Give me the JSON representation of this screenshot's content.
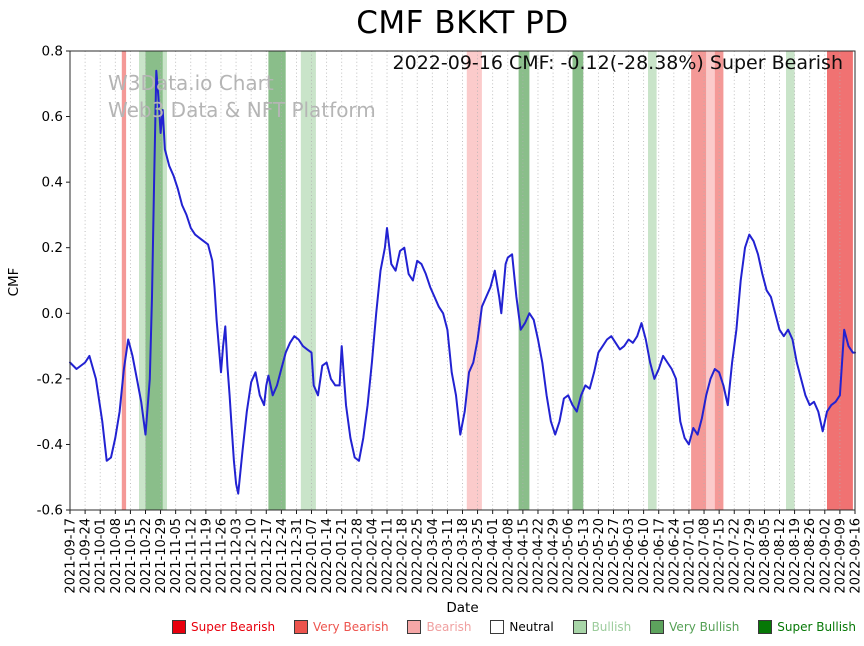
{
  "title": "CMF BKKT PD",
  "annotation": "2022-09-16 CMF: -0.12(-28.38%) Super Bearish",
  "watermark": {
    "line1": "W3Data.io Chart",
    "line2": "Web3 Data & NFT Platform"
  },
  "chart_data": {
    "type": "line",
    "title": "CMF BKKT PD",
    "xlabel": "Date",
    "ylabel": "CMF",
    "ylim": [
      -0.6,
      0.8
    ],
    "yticks": [
      0.8,
      0.6,
      0.4,
      0.2,
      0,
      -0.2,
      -0.4,
      -0.6
    ],
    "grid": "vertical-dotted",
    "days_total": 364,
    "x_tick_interval_days": 7,
    "x_tick_labels": [
      "2021-09-17",
      "2021-09-24",
      "2021-10-01",
      "2021-10-08",
      "2021-10-15",
      "2021-10-22",
      "2021-10-29",
      "2021-11-05",
      "2021-11-12",
      "2021-11-19",
      "2021-11-26",
      "2021-12-03",
      "2021-12-10",
      "2021-12-17",
      "2021-12-24",
      "2021-12-31",
      "2022-01-07",
      "2022-01-14",
      "2022-01-21",
      "2022-01-28",
      "2022-02-04",
      "2022-02-11",
      "2022-02-18",
      "2022-02-25",
      "2022-03-04",
      "2022-03-11",
      "2022-03-18",
      "2022-03-25",
      "2022-04-01",
      "2022-04-08",
      "2022-04-15",
      "2022-04-22",
      "2022-04-29",
      "2022-05-06",
      "2022-05-13",
      "2022-05-20",
      "2022-05-27",
      "2022-06-03",
      "2022-06-10",
      "2022-06-17",
      "2022-06-24",
      "2022-07-01",
      "2022-07-08",
      "2022-07-15",
      "2022-07-22",
      "2022-07-29",
      "2022-08-05",
      "2022-08-12",
      "2022-08-19",
      "2022-08-26",
      "2022-09-02",
      "2022-09-09",
      "2022-09-16"
    ],
    "current": {
      "date": "2022-09-16",
      "cmf": -0.12,
      "change_pct": -28.38,
      "signal": "Super Bearish"
    },
    "line_color": "#2222d2",
    "series": [
      {
        "name": "CMF",
        "points": [
          [
            0,
            -0.15
          ],
          [
            3,
            -0.17
          ],
          [
            7,
            -0.15
          ],
          [
            9,
            -0.13
          ],
          [
            12,
            -0.2
          ],
          [
            15,
            -0.33
          ],
          [
            17,
            -0.45
          ],
          [
            19,
            -0.44
          ],
          [
            21,
            -0.38
          ],
          [
            23,
            -0.3
          ],
          [
            25,
            -0.17
          ],
          [
            27,
            -0.08
          ],
          [
            29,
            -0.13
          ],
          [
            31,
            -0.2
          ],
          [
            33,
            -0.27
          ],
          [
            35,
            -0.37
          ],
          [
            37,
            -0.2
          ],
          [
            38,
            0.05
          ],
          [
            39,
            0.4
          ],
          [
            40,
            0.74
          ],
          [
            41,
            0.66
          ],
          [
            42,
            0.55
          ],
          [
            43,
            0.62
          ],
          [
            44,
            0.5
          ],
          [
            46,
            0.45
          ],
          [
            48,
            0.42
          ],
          [
            50,
            0.38
          ],
          [
            52,
            0.33
          ],
          [
            54,
            0.3
          ],
          [
            56,
            0.26
          ],
          [
            58,
            0.24
          ],
          [
            60,
            0.23
          ],
          [
            62,
            0.22
          ],
          [
            64,
            0.21
          ],
          [
            66,
            0.16
          ],
          [
            67,
            0.08
          ],
          [
            68,
            -0.02
          ],
          [
            69,
            -0.1
          ],
          [
            70,
            -0.18
          ],
          [
            71,
            -0.1
          ],
          [
            72,
            -0.04
          ],
          [
            73,
            -0.16
          ],
          [
            74,
            -0.25
          ],
          [
            75,
            -0.35
          ],
          [
            76,
            -0.45
          ],
          [
            77,
            -0.52
          ],
          [
            78,
            -0.55
          ],
          [
            80,
            -0.42
          ],
          [
            82,
            -0.3
          ],
          [
            84,
            -0.21
          ],
          [
            86,
            -0.18
          ],
          [
            88,
            -0.25
          ],
          [
            90,
            -0.28
          ],
          [
            91,
            -0.22
          ],
          [
            92,
            -0.19
          ],
          [
            94,
            -0.25
          ],
          [
            96,
            -0.22
          ],
          [
            98,
            -0.17
          ],
          [
            100,
            -0.12
          ],
          [
            102,
            -0.09
          ],
          [
            104,
            -0.07
          ],
          [
            106,
            -0.08
          ],
          [
            108,
            -0.1
          ],
          [
            110,
            -0.11
          ],
          [
            112,
            -0.12
          ],
          [
            113,
            -0.22
          ],
          [
            115,
            -0.25
          ],
          [
            117,
            -0.16
          ],
          [
            119,
            -0.15
          ],
          [
            121,
            -0.2
          ],
          [
            123,
            -0.22
          ],
          [
            125,
            -0.22
          ],
          [
            126,
            -0.1
          ],
          [
            128,
            -0.28
          ],
          [
            130,
            -0.38
          ],
          [
            132,
            -0.44
          ],
          [
            134,
            -0.45
          ],
          [
            136,
            -0.38
          ],
          [
            138,
            -0.28
          ],
          [
            140,
            -0.15
          ],
          [
            142,
            0.0
          ],
          [
            144,
            0.13
          ],
          [
            146,
            0.2
          ],
          [
            147,
            0.26
          ],
          [
            149,
            0.15
          ],
          [
            151,
            0.13
          ],
          [
            153,
            0.19
          ],
          [
            155,
            0.2
          ],
          [
            157,
            0.12
          ],
          [
            159,
            0.1
          ],
          [
            161,
            0.16
          ],
          [
            163,
            0.15
          ],
          [
            165,
            0.12
          ],
          [
            167,
            0.08
          ],
          [
            169,
            0.05
          ],
          [
            171,
            0.02
          ],
          [
            173,
            0.0
          ],
          [
            175,
            -0.05
          ],
          [
            177,
            -0.18
          ],
          [
            179,
            -0.25
          ],
          [
            181,
            -0.37
          ],
          [
            183,
            -0.3
          ],
          [
            185,
            -0.18
          ],
          [
            187,
            -0.15
          ],
          [
            189,
            -0.08
          ],
          [
            191,
            0.02
          ],
          [
            193,
            0.05
          ],
          [
            195,
            0.08
          ],
          [
            197,
            0.13
          ],
          [
            199,
            0.05
          ],
          [
            200,
            0.0
          ],
          [
            202,
            0.15
          ],
          [
            203,
            0.17
          ],
          [
            205,
            0.18
          ],
          [
            207,
            0.05
          ],
          [
            209,
            -0.05
          ],
          [
            211,
            -0.03
          ],
          [
            213,
            0.0
          ],
          [
            215,
            -0.02
          ],
          [
            217,
            -0.08
          ],
          [
            219,
            -0.15
          ],
          [
            221,
            -0.25
          ],
          [
            223,
            -0.33
          ],
          [
            225,
            -0.37
          ],
          [
            227,
            -0.33
          ],
          [
            229,
            -0.26
          ],
          [
            231,
            -0.25
          ],
          [
            233,
            -0.28
          ],
          [
            235,
            -0.3
          ],
          [
            237,
            -0.25
          ],
          [
            239,
            -0.22
          ],
          [
            241,
            -0.23
          ],
          [
            243,
            -0.18
          ],
          [
            245,
            -0.12
          ],
          [
            247,
            -0.1
          ],
          [
            249,
            -0.08
          ],
          [
            251,
            -0.07
          ],
          [
            253,
            -0.09
          ],
          [
            255,
            -0.11
          ],
          [
            257,
            -0.1
          ],
          [
            259,
            -0.08
          ],
          [
            261,
            -0.09
          ],
          [
            263,
            -0.07
          ],
          [
            265,
            -0.03
          ],
          [
            267,
            -0.08
          ],
          [
            269,
            -0.15
          ],
          [
            271,
            -0.2
          ],
          [
            273,
            -0.17
          ],
          [
            275,
            -0.13
          ],
          [
            277,
            -0.15
          ],
          [
            279,
            -0.17
          ],
          [
            281,
            -0.2
          ],
          [
            283,
            -0.33
          ],
          [
            285,
            -0.38
          ],
          [
            287,
            -0.4
          ],
          [
            289,
            -0.35
          ],
          [
            291,
            -0.37
          ],
          [
            293,
            -0.32
          ],
          [
            295,
            -0.25
          ],
          [
            297,
            -0.2
          ],
          [
            299,
            -0.17
          ],
          [
            301,
            -0.18
          ],
          [
            303,
            -0.22
          ],
          [
            305,
            -0.28
          ],
          [
            307,
            -0.15
          ],
          [
            309,
            -0.05
          ],
          [
            311,
            0.1
          ],
          [
            313,
            0.2
          ],
          [
            315,
            0.24
          ],
          [
            317,
            0.22
          ],
          [
            319,
            0.18
          ],
          [
            321,
            0.12
          ],
          [
            323,
            0.07
          ],
          [
            325,
            0.05
          ],
          [
            327,
            0.0
          ],
          [
            329,
            -0.05
          ],
          [
            331,
            -0.07
          ],
          [
            333,
            -0.05
          ],
          [
            335,
            -0.08
          ],
          [
            337,
            -0.15
          ],
          [
            339,
            -0.2
          ],
          [
            341,
            -0.25
          ],
          [
            343,
            -0.28
          ],
          [
            345,
            -0.27
          ],
          [
            347,
            -0.3
          ],
          [
            349,
            -0.36
          ],
          [
            351,
            -0.3
          ],
          [
            353,
            -0.28
          ],
          [
            355,
            -0.27
          ],
          [
            357,
            -0.25
          ],
          [
            359,
            -0.05
          ],
          [
            361,
            -0.1
          ],
          [
            363,
            -0.12
          ],
          [
            364,
            -0.12
          ]
        ]
      }
    ],
    "band_colors": {
      "super_bearish": "rgba(230,20,20,0.60)",
      "very_bearish": "rgba(235,70,65,0.55)",
      "bearish": "rgba(247,160,160,0.55)",
      "bullish": "rgba(165,210,165,0.60)",
      "very_bullish": "rgba(75,155,75,0.65)",
      "super_bullish": "rgba(5,110,5,0.80)"
    },
    "bands": [
      {
        "start_day": 24,
        "end_day": 26,
        "category": "very_bearish"
      },
      {
        "start_day": 32,
        "end_day": 35,
        "category": "bullish"
      },
      {
        "start_day": 35,
        "end_day": 43,
        "category": "very_bullish"
      },
      {
        "start_day": 43,
        "end_day": 45,
        "category": "bullish"
      },
      {
        "start_day": 92,
        "end_day": 100,
        "category": "very_bullish"
      },
      {
        "start_day": 107,
        "end_day": 114,
        "category": "bullish"
      },
      {
        "start_day": 184,
        "end_day": 191,
        "category": "bearish"
      },
      {
        "start_day": 208,
        "end_day": 213,
        "category": "very_bullish"
      },
      {
        "start_day": 233,
        "end_day": 238,
        "category": "very_bullish"
      },
      {
        "start_day": 268,
        "end_day": 272,
        "category": "bullish"
      },
      {
        "start_day": 288,
        "end_day": 295,
        "category": "very_bearish"
      },
      {
        "start_day": 295,
        "end_day": 299,
        "category": "bearish"
      },
      {
        "start_day": 299,
        "end_day": 303,
        "category": "very_bearish"
      },
      {
        "start_day": 332,
        "end_day": 336,
        "category": "bullish"
      },
      {
        "start_day": 351,
        "end_day": 363,
        "category": "super_bearish"
      }
    ],
    "legend": {
      "position": "bottom",
      "items": [
        {
          "label": "Super Bearish",
          "color": "#e8000d",
          "text_color": "#e8000d"
        },
        {
          "label": "Very Bearish",
          "color": "#ed544e",
          "text_color": "#ed544e"
        },
        {
          "label": "Bearish",
          "color": "#f6a7a7",
          "text_color": "#f0a0a0"
        },
        {
          "label": "Neutral",
          "color": "#ffffff",
          "text_color": "#000000"
        },
        {
          "label": "Bullish",
          "color": "#a8d5a8",
          "text_color": "#9ccc9c"
        },
        {
          "label": "Very Bullish",
          "color": "#5da35d",
          "text_color": "#55a055"
        },
        {
          "label": "Super Bullish",
          "color": "#067806",
          "text_color": "#067806"
        }
      ]
    }
  }
}
